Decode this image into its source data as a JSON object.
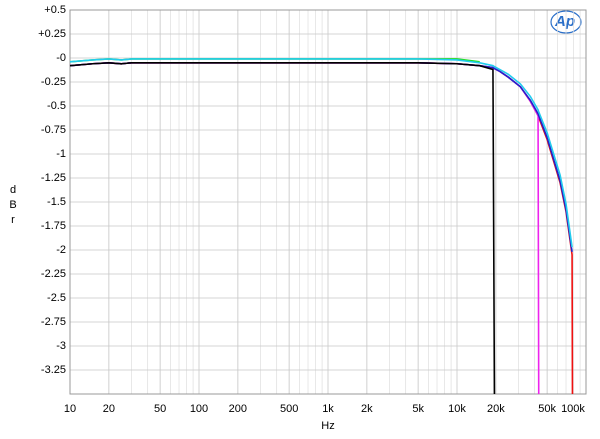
{
  "chart_data": {
    "type": "line",
    "x_label": "Hz",
    "y_label": "d B r",
    "logo": "Ap",
    "log_x": true,
    "grid": true,
    "xlim": [
      10,
      100000
    ],
    "ylim": [
      -3.5,
      0.5
    ],
    "xticks": [
      10,
      20,
      50,
      100,
      200,
      500,
      {
        "value": 1000,
        "label": "1k"
      },
      {
        "value": 2000,
        "label": "2k"
      },
      {
        "value": 5000,
        "label": "5k"
      },
      {
        "value": 10000,
        "label": "10k"
      },
      {
        "value": 20000,
        "label": "20k"
      },
      {
        "value": 50000,
        "label": "50k"
      },
      {
        "value": 100000,
        "label": "100k"
      }
    ],
    "yticks": [
      {
        "value": 0.5,
        "label": "+0.5"
      },
      {
        "value": 0.25,
        "label": "+0.25"
      },
      {
        "value": 0,
        "label": "-0"
      },
      -0.25,
      -0.5,
      -0.75,
      -1,
      -1.25,
      -1.5,
      -1.75,
      -2,
      -2.25,
      -2.5,
      -2.75,
      -3,
      -3.25
    ],
    "x": [
      10,
      15,
      20,
      25,
      30,
      50,
      100,
      200,
      500,
      1000,
      2000,
      5000,
      10000,
      15000,
      19000,
      19500,
      21500,
      25000,
      31000,
      37000,
      42500,
      43000,
      50000,
      63000,
      70000,
      78000,
      78500
    ],
    "series": [
      {
        "name": "green",
        "color": "#22dd22",
        "values": [
          -0.04,
          -0.02,
          -0.01,
          -0.02,
          -0.01,
          -0.01,
          -0.01,
          -0.01,
          -0.01,
          -0.01,
          -0.01,
          -0.01,
          -0.01,
          -0.04,
          null,
          null,
          null,
          null,
          null,
          null,
          null,
          null,
          null,
          null,
          null,
          null,
          null
        ]
      },
      {
        "name": "red",
        "color": "#ee1111",
        "values": [
          -0.08,
          -0.06,
          -0.05,
          -0.06,
          -0.05,
          -0.05,
          -0.05,
          -0.05,
          -0.05,
          -0.05,
          -0.05,
          -0.05,
          -0.06,
          -0.08,
          -0.1,
          -0.11,
          -0.14,
          -0.2,
          -0.3,
          -0.45,
          -0.6,
          -0.62,
          -0.85,
          -1.3,
          -1.6,
          -2.05,
          -3.5
        ]
      },
      {
        "name": "magenta",
        "color": "#ee22ee",
        "values": [
          -0.08,
          -0.06,
          -0.05,
          -0.06,
          -0.05,
          -0.05,
          -0.05,
          -0.05,
          -0.05,
          -0.05,
          -0.05,
          -0.05,
          -0.06,
          -0.08,
          -0.1,
          -0.11,
          -0.14,
          -0.2,
          -0.3,
          -0.45,
          -0.6,
          -3.5,
          null,
          null,
          null,
          null,
          null
        ]
      },
      {
        "name": "blue",
        "color": "#2222cc",
        "values": [
          -0.08,
          -0.06,
          -0.05,
          -0.06,
          -0.05,
          -0.05,
          -0.05,
          -0.05,
          -0.05,
          -0.05,
          -0.05,
          -0.05,
          -0.06,
          -0.08,
          -0.1,
          -0.11,
          -0.14,
          -0.2,
          -0.3,
          -0.44,
          -0.58,
          -0.6,
          -0.83,
          -1.28,
          -1.58,
          -2.02,
          null
        ]
      },
      {
        "name": "cyan",
        "color": "#22ccee",
        "values": [
          -0.04,
          -0.02,
          -0.01,
          -0.02,
          -0.01,
          -0.01,
          -0.01,
          -0.01,
          -0.01,
          -0.01,
          -0.01,
          -0.01,
          -0.02,
          -0.05,
          -0.08,
          -0.09,
          -0.12,
          -0.17,
          -0.27,
          -0.4,
          -0.54,
          -0.56,
          -0.78,
          -1.22,
          -1.52,
          -1.97,
          null
        ]
      },
      {
        "name": "black",
        "color": "#000000",
        "values": [
          -0.08,
          -0.06,
          -0.05,
          -0.06,
          -0.05,
          -0.05,
          -0.05,
          -0.05,
          -0.05,
          -0.05,
          -0.05,
          -0.05,
          -0.06,
          -0.08,
          -0.12,
          -3.5,
          null,
          null,
          null,
          null,
          null,
          null,
          null,
          null,
          null,
          null,
          null
        ]
      }
    ]
  }
}
